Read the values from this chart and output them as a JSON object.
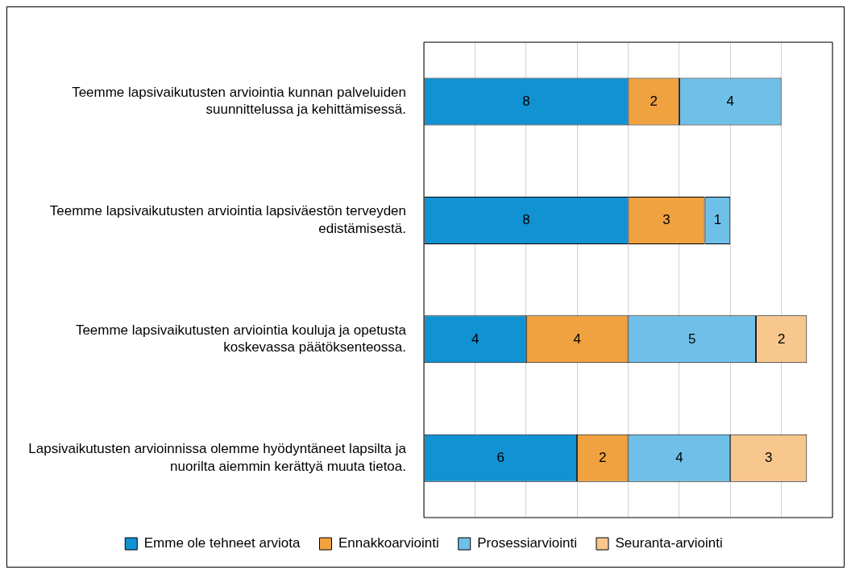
{
  "chart_data": {
    "type": "bar",
    "orientation": "horizontal",
    "stacked": true,
    "data_labels": true,
    "grid": "x",
    "legend": "bottom",
    "tick_labels": "y",
    "categories": [
      "Teemme lapsivaikutusten arviointia kunnan palveluiden suunnittelussa ja kehittämisessä.",
      "Teemme lapsivaikutusten arviointia lapsiväestön terveyden edistämisestä.",
      "Teemme lapsivaikutusten arviointia kouluja ja opetusta koskevassa päätöksenteossa.",
      "Lapsivaikutusten arvioinnissa olemme hyödyntäneet lapsilta ja nuorilta aiemmin kerättyä muuta tietoa."
    ],
    "xlim": [
      0,
      16
    ],
    "xticks": [
      {
        "value": 0,
        "label": null
      },
      {
        "value": 2,
        "label": null
      },
      {
        "value": 4,
        "label": null
      },
      {
        "value": 6,
        "label": null
      },
      {
        "value": 8,
        "label": null
      },
      {
        "value": 10,
        "label": null
      },
      {
        "value": 12,
        "label": null
      },
      {
        "value": 14,
        "label": null
      },
      {
        "value": 16,
        "label": null
      }
    ],
    "series": [
      {
        "name": "Emme ole tehneet arviota",
        "color": "#1192d2",
        "values": [
          8,
          8,
          4,
          6
        ]
      },
      {
        "name": "Ennakkoarviointi",
        "color": "#f0a140",
        "values": [
          2,
          3,
          4,
          2
        ]
      },
      {
        "name": "Prosessiarviointi",
        "color": "#6fc0e8",
        "values": [
          4,
          1,
          5,
          4
        ]
      },
      {
        "name": "Seuranta-arviointi",
        "color": "#f8c78e",
        "values": [
          null,
          null,
          2,
          3
        ]
      }
    ]
  }
}
